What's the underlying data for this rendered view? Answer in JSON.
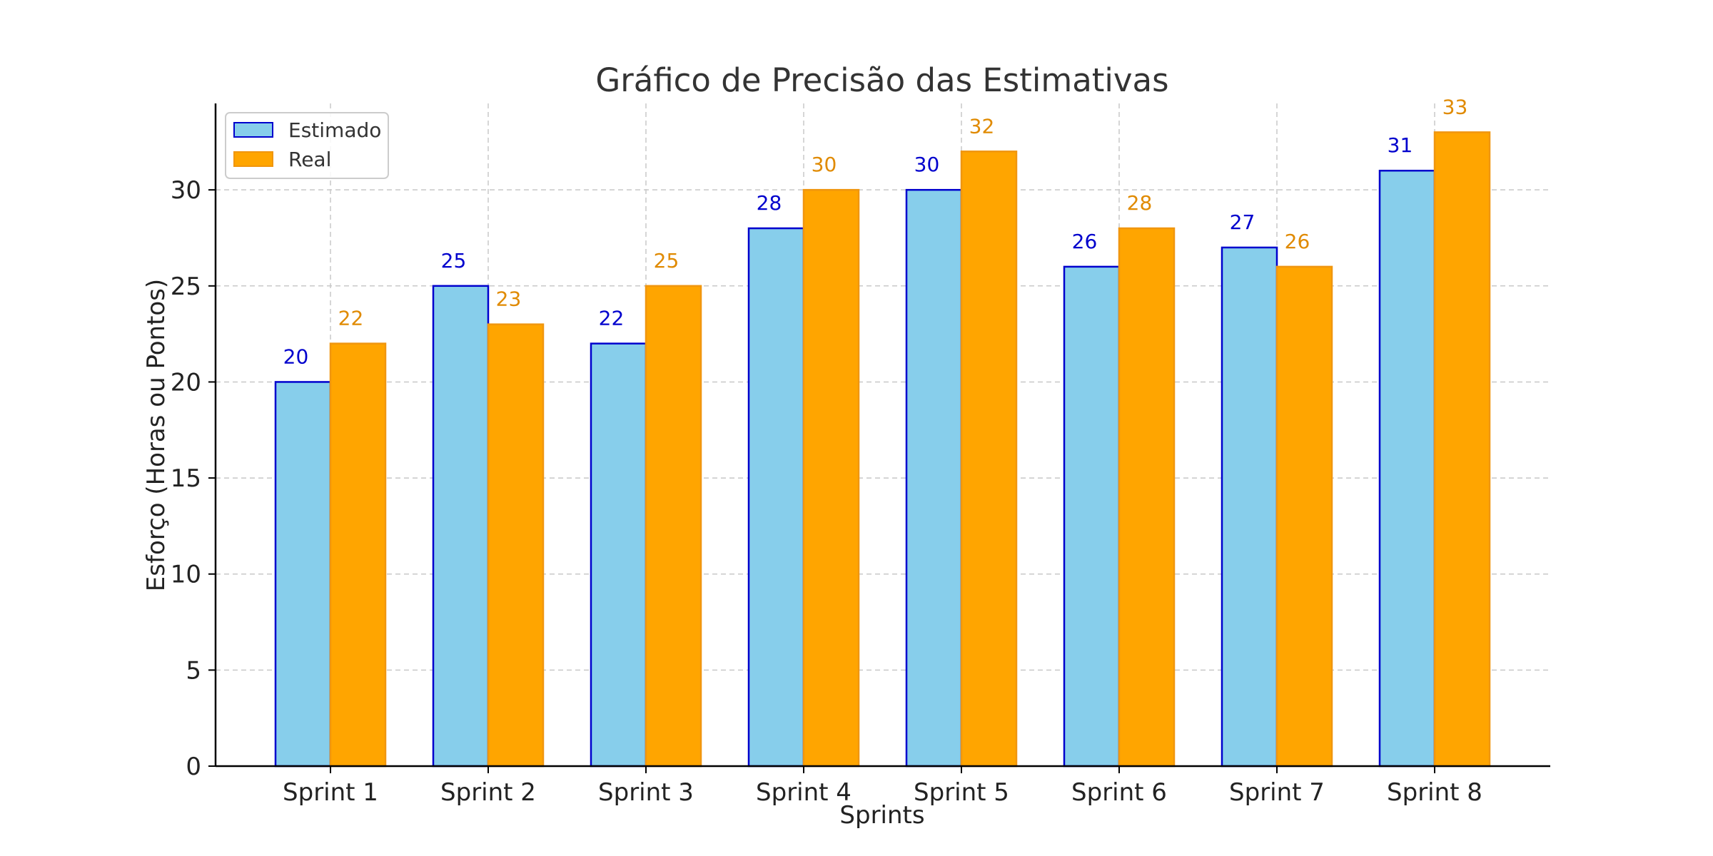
{
  "chart_data": {
    "type": "bar",
    "title": "Gráfico de Precisão das Estimativas",
    "xlabel": "Sprints",
    "ylabel": "Esforço (Horas ou Pontos)",
    "categories": [
      "Sprint 1",
      "Sprint 2",
      "Sprint 3",
      "Sprint 4",
      "Sprint 5",
      "Sprint 6",
      "Sprint 7",
      "Sprint 8"
    ],
    "series": [
      {
        "name": "Estimado",
        "values": [
          20,
          25,
          22,
          28,
          30,
          26,
          27,
          31
        ],
        "fill": "#87CEEB",
        "edge": "#0000CD",
        "label_color": "#0000CD"
      },
      {
        "name": "Real",
        "values": [
          22,
          23,
          25,
          30,
          32,
          28,
          26,
          33
        ],
        "fill": "#FFA500",
        "edge": "#F0960F",
        "label_color": "#E08A00"
      }
    ],
    "ylim": [
      0,
      34.5
    ],
    "yticks": [
      0,
      5,
      10,
      15,
      20,
      25,
      30
    ],
    "grid": true,
    "legend_position": "top-left"
  }
}
